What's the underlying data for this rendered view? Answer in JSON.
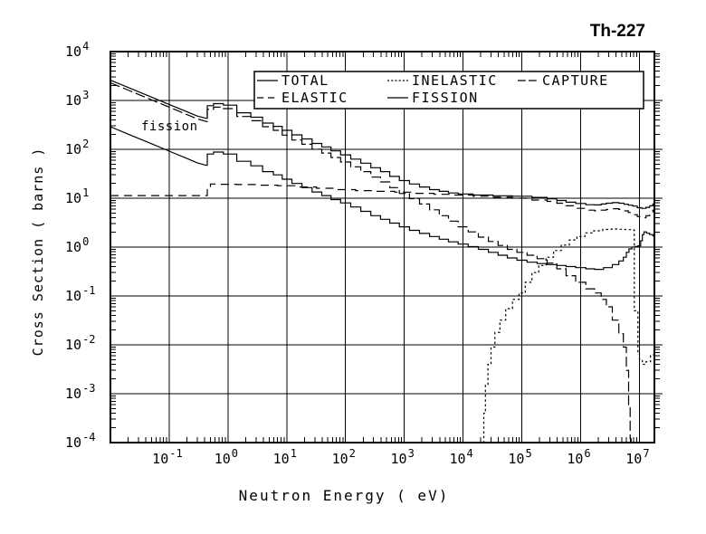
{
  "page": {
    "title": "Th-227"
  },
  "chart_data": {
    "type": "line",
    "title": "Th-227",
    "xlabel": "Neutron Energy ( eV)",
    "ylabel": "Cross Section ( barns )",
    "x_scale": "log",
    "y_scale": "log",
    "xlim": [
      0.01,
      18000000.0
    ],
    "ylim": [
      0.0001,
      10000.0
    ],
    "grid": true,
    "ink_color": "#000000",
    "background_color": "#ffffff",
    "x_tick_exponents": [
      -1,
      0,
      1,
      2,
      3,
      4,
      5,
      6,
      7
    ],
    "y_tick_exponents": [
      4,
      3,
      2,
      1,
      0,
      -1,
      -2,
      -3,
      -4
    ],
    "legend": {
      "position": "top-center",
      "rows": [
        [
          "TOTAL",
          "INELASTIC",
          "CAPTURE"
        ],
        [
          "ELASTIC",
          "FISSION"
        ]
      ]
    },
    "annotations": [
      {
        "text": "fission",
        "x": 0.033,
        "y": 280
      }
    ],
    "series": [
      {
        "name": "TOTAL",
        "dash": null,
        "step_from": 0.44,
        "points": [
          [
            0.01,
            2600
          ],
          [
            0.02,
            1850
          ],
          [
            0.05,
            1170
          ],
          [
            0.1,
            830
          ],
          [
            0.2,
            590
          ],
          [
            0.3,
            480
          ],
          [
            0.43,
            430
          ],
          [
            0.46,
            780
          ],
          [
            0.7,
            860
          ],
          [
            1,
            800
          ],
          [
            2,
            560
          ],
          [
            3,
            455
          ],
          [
            5,
            345
          ],
          [
            7,
            295
          ],
          [
            10,
            245
          ],
          [
            15,
            198
          ],
          [
            22,
            163
          ],
          [
            33,
            132
          ],
          [
            47,
            112
          ],
          [
            68,
            93
          ],
          [
            100,
            77
          ],
          [
            150,
            63
          ],
          [
            220,
            52
          ],
          [
            330,
            42
          ],
          [
            470,
            35
          ],
          [
            680,
            28
          ],
          [
            1000.0,
            23
          ],
          [
            1500.0,
            19.5
          ],
          [
            2200.0,
            17
          ],
          [
            3300.0,
            15
          ],
          [
            4700.0,
            13.8
          ],
          [
            6800.0,
            12.8
          ],
          [
            10000.0,
            12.2
          ],
          [
            22000.0,
            11.6
          ],
          [
            47000.0,
            11.2
          ],
          [
            100000.0,
            11
          ],
          [
            220000.0,
            10.4
          ],
          [
            330000.0,
            9.7
          ],
          [
            470000.0,
            9.0
          ],
          [
            680000.0,
            8.3
          ],
          [
            1000000.0,
            7.8
          ],
          [
            1500000.0,
            7.35
          ],
          [
            2000000.0,
            7.3
          ],
          [
            2500000.0,
            7.6
          ],
          [
            3000000.0,
            7.9
          ],
          [
            4000000.0,
            8.1
          ],
          [
            5000000.0,
            7.9
          ],
          [
            6000000.0,
            7.5
          ],
          [
            7000000.0,
            7.2
          ],
          [
            8500000.0,
            6.9
          ],
          [
            10000000.0,
            6.4
          ],
          [
            12000000.0,
            6.2
          ],
          [
            14000000.0,
            6.5
          ],
          [
            16000000.0,
            7.0
          ],
          [
            18000000.0,
            7.6
          ]
        ]
      },
      {
        "name": "ELASTIC",
        "dash": [
          9,
          6
        ],
        "step_from": 0.44,
        "points": [
          [
            0.01,
            11.3
          ],
          [
            0.1,
            11.3
          ],
          [
            0.3,
            11.3
          ],
          [
            0.43,
            11.3
          ],
          [
            0.46,
            15
          ],
          [
            0.55,
            19.5
          ],
          [
            1,
            19.3
          ],
          [
            2,
            19
          ],
          [
            5,
            18.5
          ],
          [
            10,
            18
          ],
          [
            22,
            17
          ],
          [
            47,
            16
          ],
          [
            100,
            15
          ],
          [
            220,
            14.3
          ],
          [
            470,
            13.8
          ],
          [
            1000.0,
            13.3
          ],
          [
            2200.0,
            12.6
          ],
          [
            4700.0,
            12
          ],
          [
            10000.0,
            11.6
          ],
          [
            22000.0,
            11
          ],
          [
            47000.0,
            10.5
          ],
          [
            100000.0,
            10
          ],
          [
            220000.0,
            9.2
          ],
          [
            330000.0,
            8.6
          ],
          [
            470000.0,
            7.9
          ],
          [
            680000.0,
            7.0
          ],
          [
            1000000.0,
            6.2
          ],
          [
            1500000.0,
            5.7
          ],
          [
            2000000.0,
            5.5
          ],
          [
            2500000.0,
            5.7
          ],
          [
            3000000.0,
            5.9
          ],
          [
            4000000.0,
            6.1
          ],
          [
            5000000.0,
            5.9
          ],
          [
            6000000.0,
            5.5
          ],
          [
            7000000.0,
            5.1
          ],
          [
            8500000.0,
            4.6
          ],
          [
            10000000.0,
            4.2
          ],
          [
            12000000.0,
            4.0
          ],
          [
            14000000.0,
            4.4
          ],
          [
            16000000.0,
            5.0
          ],
          [
            18000000.0,
            5.7
          ]
        ]
      },
      {
        "name": "INELASTIC",
        "dash": [
          2.5,
          2.8
        ],
        "step_from": 0,
        "points": [
          [
            22000.0,
            0.0001
          ],
          [
            23000.0,
            0.0004
          ],
          [
            25000.0,
            0.0015
          ],
          [
            28000.0,
            0.004
          ],
          [
            32000.0,
            0.009
          ],
          [
            38000.0,
            0.018
          ],
          [
            47000.0,
            0.032
          ],
          [
            60000.0,
            0.055
          ],
          [
            80000.0,
            0.085
          ],
          [
            100000.0,
            0.115
          ],
          [
            130000.0,
            0.19
          ],
          [
            170000.0,
            0.3
          ],
          [
            220000.0,
            0.42
          ],
          [
            300000.0,
            0.62
          ],
          [
            400000.0,
            0.85
          ],
          [
            550000.0,
            1.1
          ],
          [
            750000.0,
            1.4
          ],
          [
            1000000.0,
            1.65
          ],
          [
            1400000.0,
            1.95
          ],
          [
            2000000.0,
            2.15
          ],
          [
            2800000.0,
            2.3
          ],
          [
            4000000.0,
            2.35
          ],
          [
            5000000.0,
            2.32
          ],
          [
            6500000.0,
            2.28
          ],
          [
            8000000.0,
            2.25
          ],
          [
            8400000.0,
            0.05
          ],
          [
            9300000.0,
            0.05
          ],
          [
            9600000.0,
            0.0065
          ],
          [
            10500000.0,
            0.005
          ],
          [
            12000000.0,
            0.004
          ],
          [
            14000000.0,
            0.0045
          ],
          [
            17000000.0,
            0.006
          ],
          [
            18000000.0,
            0.007
          ]
        ]
      },
      {
        "name": "FISSION",
        "dash": null,
        "step_from": 0.44,
        "points": [
          [
            0.01,
            290
          ],
          [
            0.02,
            205
          ],
          [
            0.05,
            130
          ],
          [
            0.1,
            92
          ],
          [
            0.2,
            65
          ],
          [
            0.3,
            53
          ],
          [
            0.43,
            47
          ],
          [
            0.46,
            80
          ],
          [
            0.7,
            88
          ],
          [
            1,
            80
          ],
          [
            2,
            57
          ],
          [
            3,
            46
          ],
          [
            5,
            35
          ],
          [
            7,
            30
          ],
          [
            10,
            24.5
          ],
          [
            15,
            20
          ],
          [
            22,
            16.5
          ],
          [
            33,
            13.4
          ],
          [
            47,
            11.3
          ],
          [
            68,
            9.4
          ],
          [
            100,
            8.0
          ],
          [
            150,
            6.6
          ],
          [
            220,
            5.4
          ],
          [
            330,
            4.4
          ],
          [
            470,
            3.7
          ],
          [
            680,
            3.1
          ],
          [
            1000.0,
            2.6
          ],
          [
            1500.0,
            2.2
          ],
          [
            2200.0,
            1.9
          ],
          [
            3300.0,
            1.65
          ],
          [
            4700.0,
            1.45
          ],
          [
            6800.0,
            1.28
          ],
          [
            10000.0,
            1.15
          ],
          [
            15000.0,
            1.02
          ],
          [
            22000.0,
            0.9
          ],
          [
            33000.0,
            0.78
          ],
          [
            47000.0,
            0.68
          ],
          [
            68000.0,
            0.6
          ],
          [
            100000.0,
            0.54
          ],
          [
            150000.0,
            0.49
          ],
          [
            220000.0,
            0.46
          ],
          [
            330000.0,
            0.44
          ],
          [
            470000.0,
            0.42
          ],
          [
            680000.0,
            0.4
          ],
          [
            1000000.0,
            0.38
          ],
          [
            1500000.0,
            0.36
          ],
          [
            2000000.0,
            0.35
          ],
          [
            3000000.0,
            0.38
          ],
          [
            4000000.0,
            0.44
          ],
          [
            5000000.0,
            0.52
          ],
          [
            5700000.0,
            0.62
          ],
          [
            6300000.0,
            0.78
          ],
          [
            7000000.0,
            0.92
          ],
          [
            8000000.0,
            1.0
          ],
          [
            9000000.0,
            1.03
          ],
          [
            10000000.0,
            1.06
          ],
          [
            11000000.0,
            1.35
          ],
          [
            11500000.0,
            1.8
          ],
          [
            12500000.0,
            2.05
          ],
          [
            14000000.0,
            1.92
          ],
          [
            16000000.0,
            1.8
          ],
          [
            18000000.0,
            1.7
          ]
        ]
      },
      {
        "name": "CAPTURE",
        "dash": [
          11,
          4
        ],
        "step_from": 0.44,
        "points": [
          [
            0.01,
            2300
          ],
          [
            0.02,
            1630
          ],
          [
            0.05,
            1030
          ],
          [
            0.1,
            730
          ],
          [
            0.2,
            515
          ],
          [
            0.3,
            420
          ],
          [
            0.43,
            370
          ],
          [
            0.46,
            660
          ],
          [
            0.7,
            730
          ],
          [
            1,
            680
          ],
          [
            2,
            470
          ],
          [
            3,
            385
          ],
          [
            5,
            290
          ],
          [
            7,
            245
          ],
          [
            10,
            195
          ],
          [
            15,
            155
          ],
          [
            22,
            127
          ],
          [
            33,
            101
          ],
          [
            47,
            84
          ],
          [
            68,
            68
          ],
          [
            100,
            55
          ],
          [
            150,
            44
          ],
          [
            220,
            35
          ],
          [
            330,
            27
          ],
          [
            470,
            21.5
          ],
          [
            680,
            16.5
          ],
          [
            1000.0,
            12.5
          ],
          [
            1500.0,
            9.8
          ],
          [
            2200.0,
            7.6
          ],
          [
            3300.0,
            5.8
          ],
          [
            4700.0,
            4.4
          ],
          [
            6800.0,
            3.4
          ],
          [
            10000.0,
            2.6
          ],
          [
            15000.0,
            2.05
          ],
          [
            22000.0,
            1.6
          ],
          [
            33000.0,
            1.3
          ],
          [
            47000.0,
            1.08
          ],
          [
            68000.0,
            0.9
          ],
          [
            100000.0,
            0.78
          ],
          [
            150000.0,
            0.68
          ],
          [
            220000.0,
            0.58
          ],
          [
            330000.0,
            0.47
          ],
          [
            470000.0,
            0.36
          ],
          [
            680000.0,
            0.26
          ],
          [
            1000000.0,
            0.19
          ],
          [
            1500000.0,
            0.14
          ],
          [
            2000000.0,
            0.115
          ],
          [
            2500000.0,
            0.085
          ],
          [
            3000000.0,
            0.06
          ],
          [
            4000000.0,
            0.032
          ],
          [
            5000000.0,
            0.017
          ],
          [
            5700000.0,
            0.009
          ],
          [
            6300000.0,
            0.003
          ],
          [
            6800000.0,
            0.0006
          ],
          [
            7100000.0,
            0.00012
          ],
          [
            7300000.0,
            0.0001
          ]
        ]
      }
    ]
  }
}
